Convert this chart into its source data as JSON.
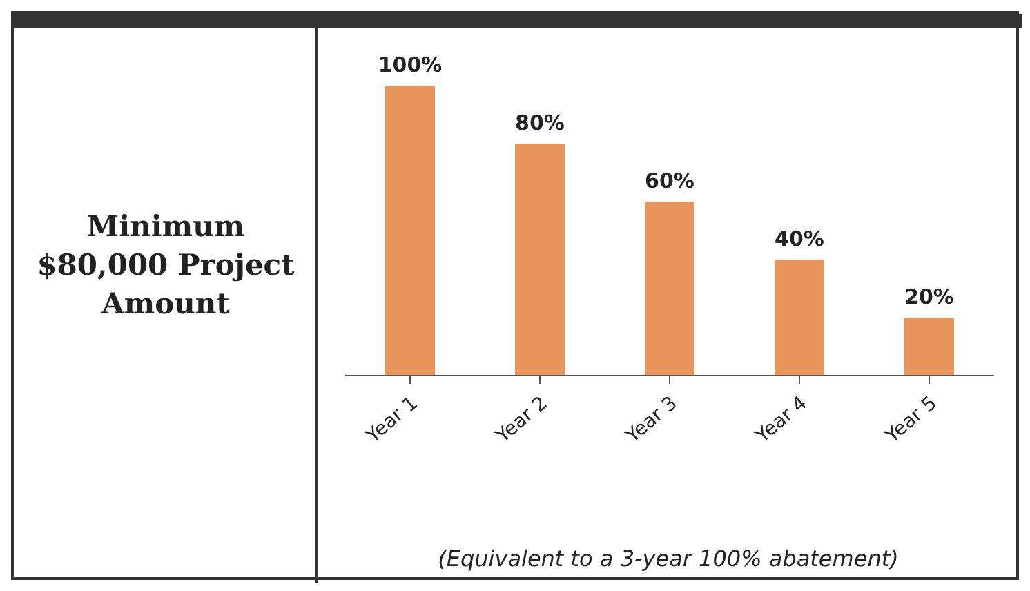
{
  "chart_data": {
    "type": "bar",
    "categories": [
      "Year 1",
      "Year 2",
      "Year 3",
      "Year 4",
      "Year 5"
    ],
    "values": [
      100,
      80,
      60,
      40,
      20
    ],
    "value_labels": [
      "100%",
      "80%",
      "60%",
      "40%",
      "20%"
    ],
    "color": "#e8955c",
    "annotations": [
      "Minimum $80,000 Project Amount",
      "(Equivalent to a 3-year 100% abatement)"
    ]
  }
}
